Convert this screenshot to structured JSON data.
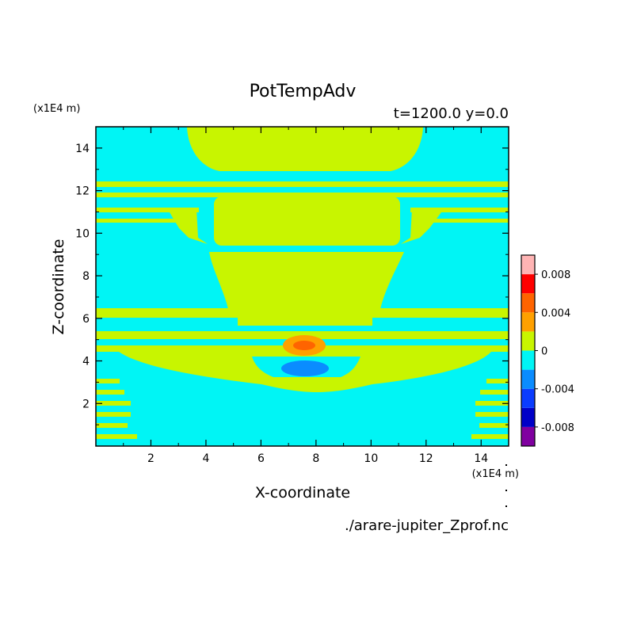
{
  "chart_data": {
    "type": "contour",
    "title": "PotTempAdv",
    "subtitle": "t=1200.0 y=0.0",
    "xlabel": "X-coordinate",
    "ylabel": "Z-coordinate",
    "x_unit": "(x1E4 m)",
    "y_unit": "(x1E4 m)",
    "xlim": [
      0,
      15
    ],
    "ylim": [
      0,
      15
    ],
    "xticks": [
      "2",
      "4",
      "6",
      "8",
      "10",
      "12",
      "14"
    ],
    "yticks": [
      "2",
      "4",
      "6",
      "8",
      "10",
      "12",
      "14"
    ],
    "source_file": "./arare-jupiter_Zprof.nc",
    "colorbar": {
      "tick_labels": [
        "0.008",
        "0.004",
        "0",
        "-0.004",
        "-0.008"
      ],
      "levels": [
        -0.01,
        -0.008,
        -0.006,
        -0.004,
        -0.002,
        0,
        0.002,
        0.004,
        0.006,
        0.008,
        0.01
      ],
      "colors": [
        "#8000a0",
        "#0000c8",
        "#0a3cff",
        "#0a8cff",
        "#00f5f5",
        "#c8f500",
        "#ffa000",
        "#ff6400",
        "#ff0000",
        "#ffb4b4"
      ]
    },
    "regions": [
      {
        "name": "positive-band",
        "level": 1,
        "color": "#c8f500"
      },
      {
        "name": "negative-band",
        "level": -1,
        "color": "#00f5f5"
      },
      {
        "name": "positive-core-mid",
        "level": 2,
        "color": "#ffa000"
      },
      {
        "name": "positive-core-inner",
        "level": 3,
        "color": "#ff6400"
      },
      {
        "name": "negative-core",
        "level": -2,
        "color": "#0a8cff"
      }
    ]
  }
}
